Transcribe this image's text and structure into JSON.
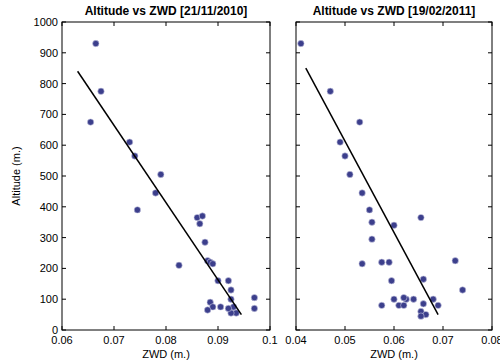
{
  "chart_data": [
    {
      "type": "scatter",
      "title": "Altitude vs ZWD [21/11/2010]",
      "x_label": "ZWD (m.)",
      "y_label": "Altitude (m.)",
      "xlim": [
        0.06,
        0.1
      ],
      "xticks": [
        0.06,
        0.07,
        0.08,
        0.09,
        0.1
      ],
      "ylim": [
        0,
        1000
      ],
      "yticks": [
        0,
        100,
        200,
        300,
        400,
        500,
        600,
        700,
        800,
        900,
        1000
      ],
      "grid": false,
      "tick_labels": true,
      "series": [
        {
          "type": "scatter",
          "marker": "circle",
          "color": "#3c3f8c",
          "x": [
            0.0665,
            0.0675,
            0.0655,
            0.073,
            0.074,
            0.0745,
            0.078,
            0.079,
            0.086,
            0.087,
            0.0865,
            0.0825,
            0.0875,
            0.088,
            0.0885,
            0.089,
            0.09,
            0.092,
            0.0925,
            0.0885,
            0.089,
            0.0905,
            0.088,
            0.0925,
            0.093,
            0.0935,
            0.0925,
            0.097,
            0.097,
            0.092
          ],
          "values": [
            930,
            775,
            675,
            610,
            565,
            390,
            445,
            505,
            365,
            370,
            345,
            210,
            285,
            225,
            220,
            215,
            160,
            160,
            130,
            90,
            75,
            75,
            65,
            100,
            75,
            55,
            55,
            105,
            70,
            70
          ]
        },
        {
          "type": "line",
          "line_style": "solid",
          "color": "#000000",
          "x": [
            0.063,
            0.0945
          ],
          "values": [
            840,
            50
          ]
        }
      ]
    },
    {
      "type": "scatter",
      "title": "Altitude vs ZWD [19/02/2011]",
      "x_label": "ZWD (m.)",
      "xlim": [
        0.04,
        0.08
      ],
      "xticks": [
        0.04,
        0.05,
        0.06,
        0.07,
        0.08
      ],
      "ylim": [
        0,
        1000
      ],
      "yticks": [
        0,
        100,
        200,
        300,
        400,
        500,
        600,
        700,
        800,
        900,
        1000
      ],
      "grid": false,
      "tick_labels": "x",
      "series": [
        {
          "type": "scatter",
          "marker": "circle",
          "color": "#3c3f8c",
          "x": [
            0.041,
            0.047,
            0.049,
            0.05,
            0.051,
            0.053,
            0.0535,
            0.055,
            0.0555,
            0.0555,
            0.0535,
            0.0575,
            0.059,
            0.0595,
            0.06,
            0.0575,
            0.06,
            0.061,
            0.062,
            0.0625,
            0.064,
            0.0655,
            0.066,
            0.0655,
            0.066,
            0.0665,
            0.0655,
            0.068,
            0.0725,
            0.074,
            0.069,
            0.062
          ],
          "values": [
            930,
            775,
            610,
            565,
            505,
            675,
            445,
            390,
            350,
            295,
            215,
            220,
            220,
            160,
            340,
            80,
            100,
            80,
            80,
            100,
            100,
            365,
            165,
            60,
            85,
            50,
            45,
            100,
            225,
            130,
            80,
            105
          ]
        },
        {
          "type": "line",
          "line_style": "solid",
          "color": "#000000",
          "x": [
            0.042,
            0.069
          ],
          "values": [
            850,
            50
          ]
        }
      ]
    }
  ]
}
